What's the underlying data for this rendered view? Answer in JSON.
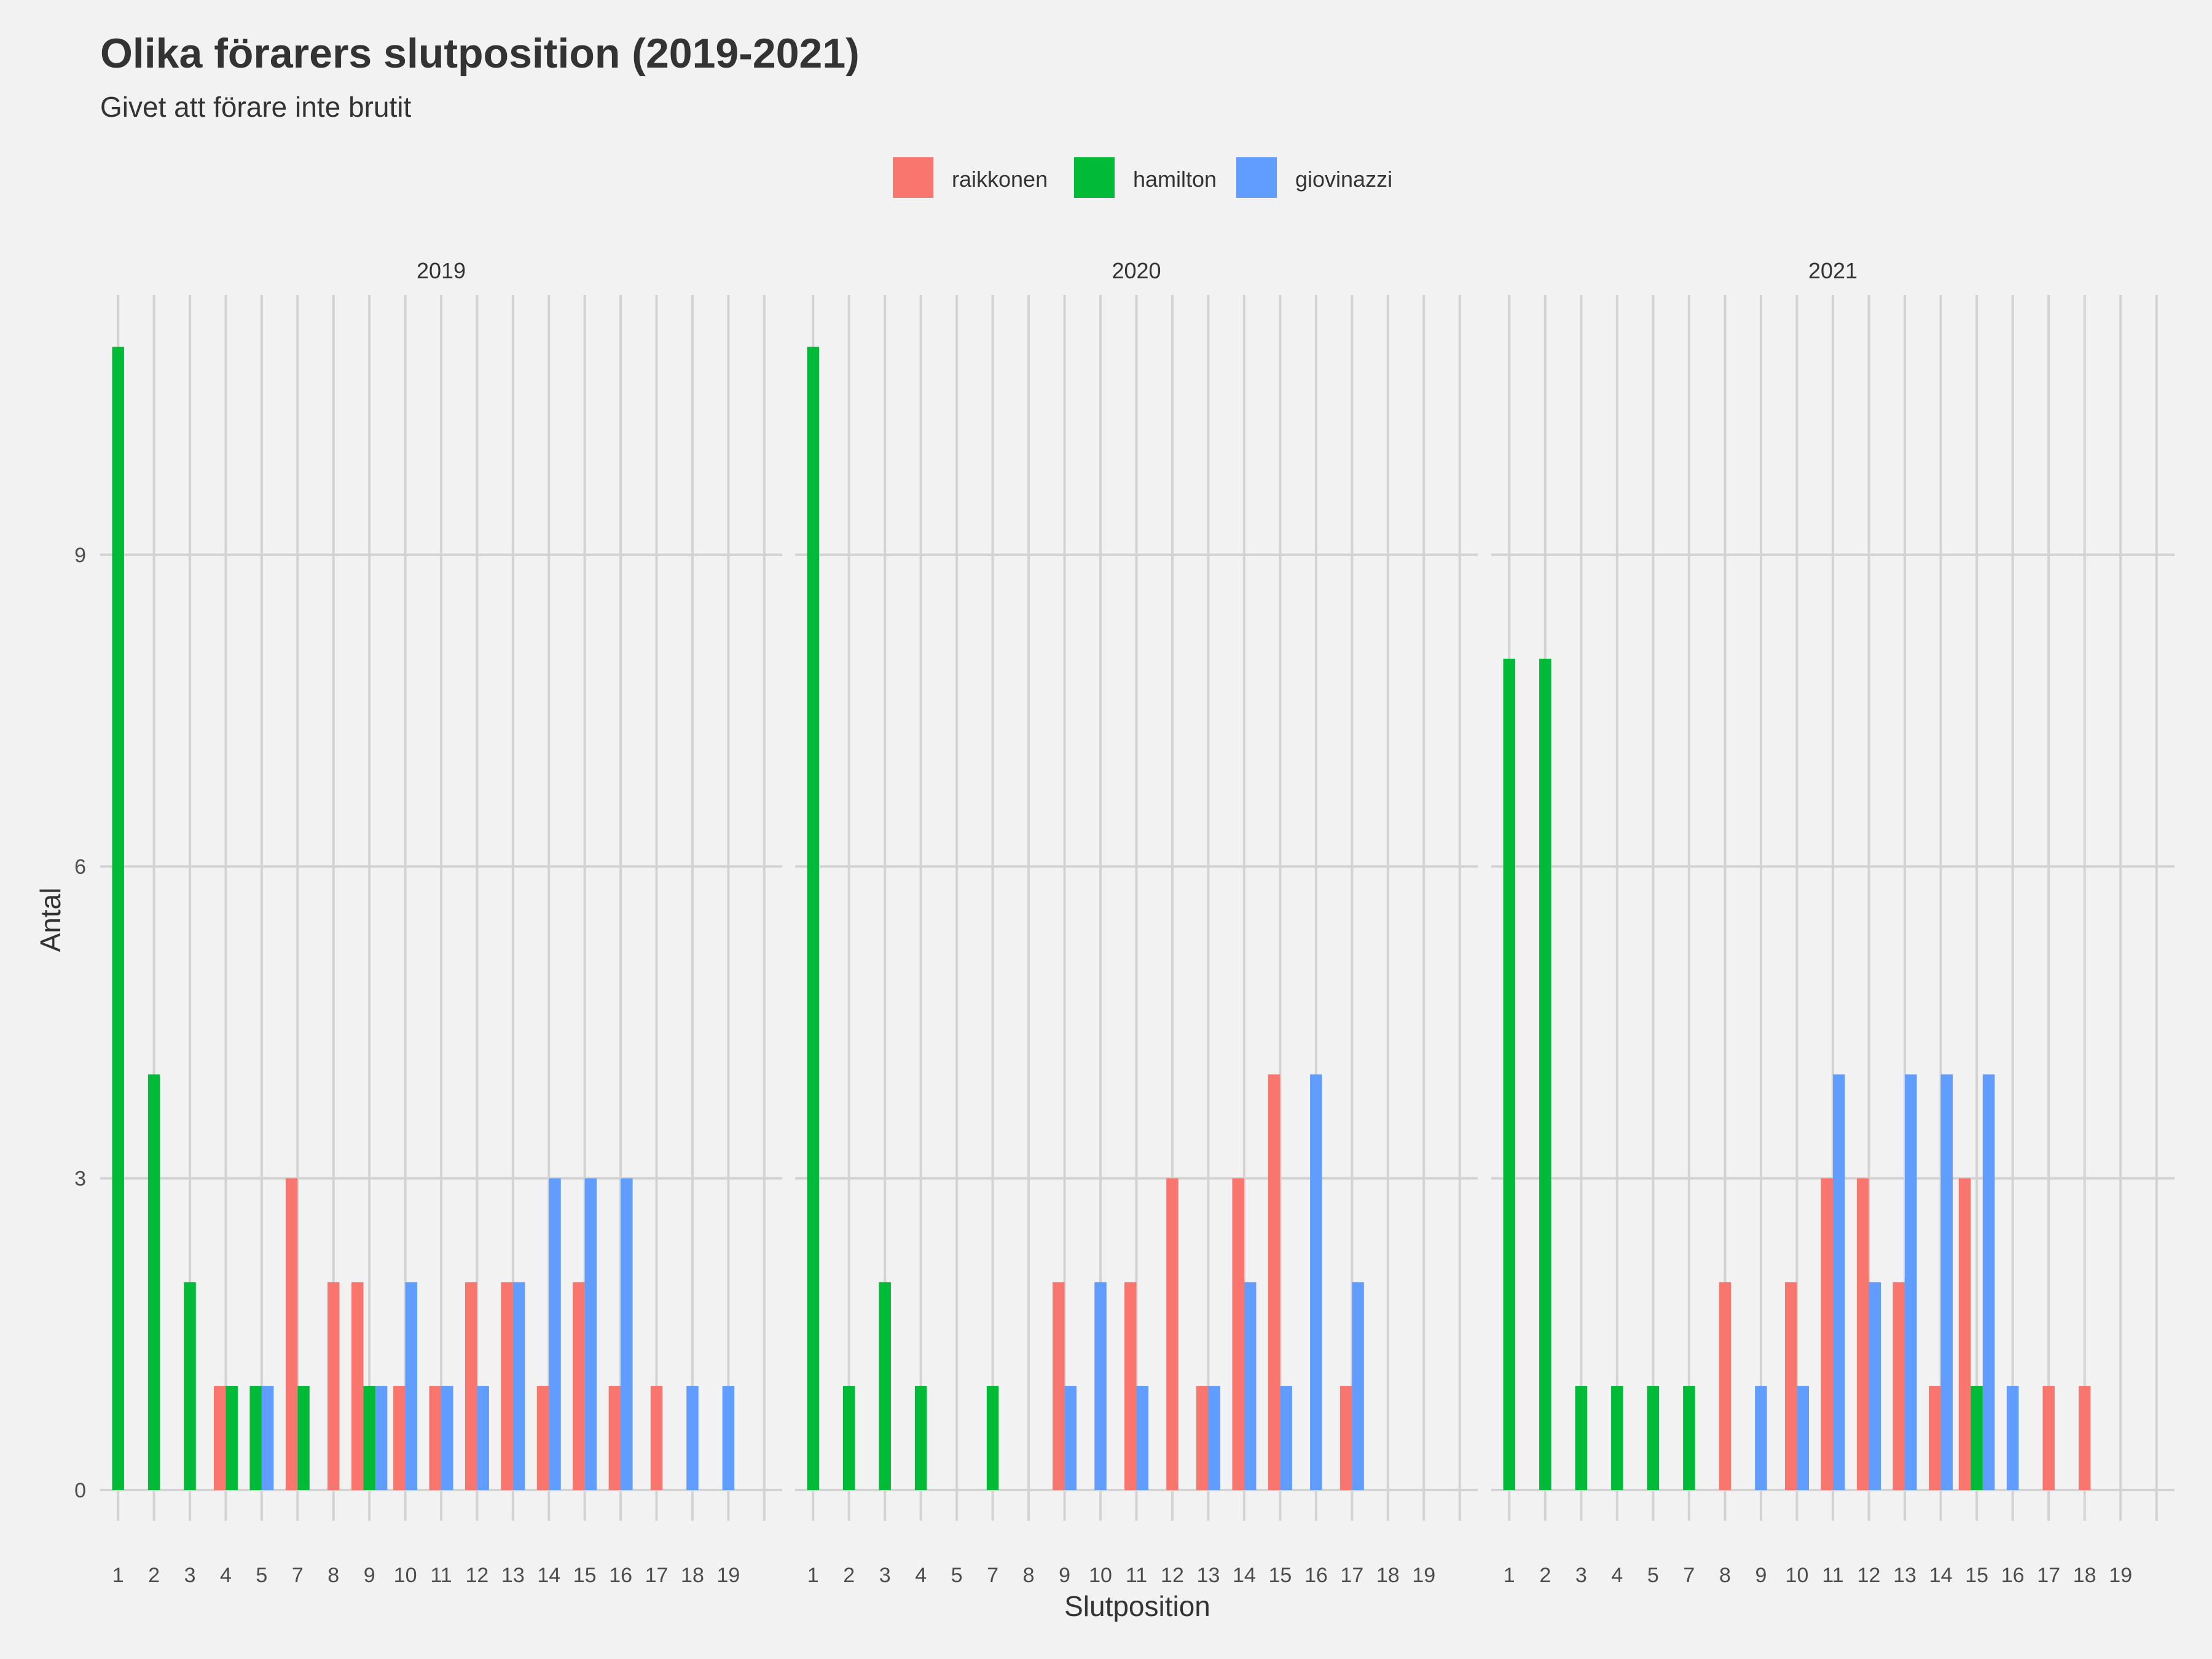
{
  "chart_data": {
    "type": "bar",
    "title": "Olika förarers slutposition (2019-2021)",
    "subtitle": "Givet att förare inte brutit",
    "xlabel": "Slutposition",
    "ylabel": "Antal",
    "ylim": [
      0,
      11.5
    ],
    "yticks": [
      0,
      3,
      6,
      9
    ],
    "grid": true,
    "legend_position": "top",
    "categories": [
      "1",
      "2",
      "3",
      "4",
      "5",
      "6",
      "7",
      "8",
      "9",
      "10",
      "11",
      "12",
      "13",
      "14",
      "15",
      "16",
      "17",
      "18",
      "19"
    ],
    "tick_labels": [
      "1",
      "2",
      "3",
      "4",
      "5",
      "7",
      "8",
      "9",
      "10",
      "11",
      "12",
      "13",
      "14",
      "15",
      "16",
      "17",
      "18",
      "19"
    ],
    "series": [
      {
        "name": "raikkonen",
        "color": "#F8766D"
      },
      {
        "name": "hamilton",
        "color": "#00BA38"
      },
      {
        "name": "giovinazzi",
        "color": "#619CFF"
      }
    ],
    "facets": [
      {
        "label": "2019",
        "bars": [
          {
            "x": 1,
            "series": "hamilton",
            "value": 11
          },
          {
            "x": 2,
            "series": "hamilton",
            "value": 4
          },
          {
            "x": 3,
            "series": "hamilton",
            "value": 2
          },
          {
            "x": 4,
            "series": "raikkonen",
            "value": 1
          },
          {
            "x": 4,
            "series": "hamilton",
            "value": 1
          },
          {
            "x": 5,
            "series": "hamilton",
            "value": 1
          },
          {
            "x": 5,
            "series": "giovinazzi",
            "value": 1
          },
          {
            "x": 6,
            "series": "raikkonen",
            "value": 3
          },
          {
            "x": 6,
            "series": "hamilton",
            "value": 1
          },
          {
            "x": 7,
            "series": "raikkonen",
            "value": 2
          },
          {
            "x": 8,
            "series": "raikkonen",
            "value": 2
          },
          {
            "x": 8,
            "series": "hamilton",
            "value": 1
          },
          {
            "x": 8,
            "series": "giovinazzi",
            "value": 1
          },
          {
            "x": 9,
            "series": "raikkonen",
            "value": 1
          },
          {
            "x": 9,
            "series": "giovinazzi",
            "value": 2
          },
          {
            "x": 10,
            "series": "raikkonen",
            "value": 1
          },
          {
            "x": 10,
            "series": "giovinazzi",
            "value": 1
          },
          {
            "x": 11,
            "series": "raikkonen",
            "value": 2
          },
          {
            "x": 11,
            "series": "giovinazzi",
            "value": 1
          },
          {
            "x": 12,
            "series": "raikkonen",
            "value": 2
          },
          {
            "x": 12,
            "series": "giovinazzi",
            "value": 2
          },
          {
            "x": 13,
            "series": "raikkonen",
            "value": 1
          },
          {
            "x": 13,
            "series": "giovinazzi",
            "value": 3
          },
          {
            "x": 14,
            "series": "raikkonen",
            "value": 2
          },
          {
            "x": 14,
            "series": "giovinazzi",
            "value": 3
          },
          {
            "x": 15,
            "series": "raikkonen",
            "value": 1
          },
          {
            "x": 15,
            "series": "giovinazzi",
            "value": 3
          },
          {
            "x": 16,
            "series": "raikkonen",
            "value": 1
          },
          {
            "x": 17,
            "series": "giovinazzi",
            "value": 1
          },
          {
            "x": 18,
            "series": "giovinazzi",
            "value": 1
          }
        ]
      },
      {
        "label": "2020",
        "bars": [
          {
            "x": 1,
            "series": "hamilton",
            "value": 11
          },
          {
            "x": 2,
            "series": "hamilton",
            "value": 1
          },
          {
            "x": 3,
            "series": "hamilton",
            "value": 2
          },
          {
            "x": 4,
            "series": "hamilton",
            "value": 1
          },
          {
            "x": 6,
            "series": "hamilton",
            "value": 1
          },
          {
            "x": 8,
            "series": "raikkonen",
            "value": 2
          },
          {
            "x": 8,
            "series": "giovinazzi",
            "value": 1
          },
          {
            "x": 9,
            "series": "giovinazzi",
            "value": 2
          },
          {
            "x": 10,
            "series": "raikkonen",
            "value": 2
          },
          {
            "x": 10,
            "series": "giovinazzi",
            "value": 1
          },
          {
            "x": 11,
            "series": "raikkonen",
            "value": 3
          },
          {
            "x": 12,
            "series": "raikkonen",
            "value": 1
          },
          {
            "x": 12,
            "series": "giovinazzi",
            "value": 1
          },
          {
            "x": 13,
            "series": "raikkonen",
            "value": 3
          },
          {
            "x": 13,
            "series": "giovinazzi",
            "value": 2
          },
          {
            "x": 14,
            "series": "raikkonen",
            "value": 4
          },
          {
            "x": 14,
            "series": "giovinazzi",
            "value": 1
          },
          {
            "x": 15,
            "series": "giovinazzi",
            "value": 4
          },
          {
            "x": 16,
            "series": "raikkonen",
            "value": 1
          },
          {
            "x": 16,
            "series": "giovinazzi",
            "value": 2
          }
        ]
      },
      {
        "label": "2021",
        "bars": [
          {
            "x": 1,
            "series": "hamilton",
            "value": 8
          },
          {
            "x": 2,
            "series": "hamilton",
            "value": 8
          },
          {
            "x": 3,
            "series": "hamilton",
            "value": 1
          },
          {
            "x": 4,
            "series": "hamilton",
            "value": 1
          },
          {
            "x": 5,
            "series": "hamilton",
            "value": 1
          },
          {
            "x": 6,
            "series": "hamilton",
            "value": 1
          },
          {
            "x": 7,
            "series": "raikkonen",
            "value": 2
          },
          {
            "x": 8,
            "series": "giovinazzi",
            "value": 1
          },
          {
            "x": 9,
            "series": "raikkonen",
            "value": 2
          },
          {
            "x": 9,
            "series": "giovinazzi",
            "value": 1
          },
          {
            "x": 10,
            "series": "raikkonen",
            "value": 3
          },
          {
            "x": 10,
            "series": "giovinazzi",
            "value": 4
          },
          {
            "x": 11,
            "series": "raikkonen",
            "value": 3
          },
          {
            "x": 11,
            "series": "giovinazzi",
            "value": 2
          },
          {
            "x": 12,
            "series": "raikkonen",
            "value": 2
          },
          {
            "x": 12,
            "series": "giovinazzi",
            "value": 4
          },
          {
            "x": 13,
            "series": "raikkonen",
            "value": 1
          },
          {
            "x": 13,
            "series": "giovinazzi",
            "value": 4
          },
          {
            "x": 14,
            "series": "raikkonen",
            "value": 3
          },
          {
            "x": 14,
            "series": "hamilton",
            "value": 1
          },
          {
            "x": 14,
            "series": "giovinazzi",
            "value": 4
          },
          {
            "x": 15,
            "series": "giovinazzi",
            "value": 1
          },
          {
            "x": 16,
            "series": "raikkonen",
            "value": 1
          },
          {
            "x": 17,
            "series": "raikkonen",
            "value": 1
          }
        ]
      }
    ]
  }
}
